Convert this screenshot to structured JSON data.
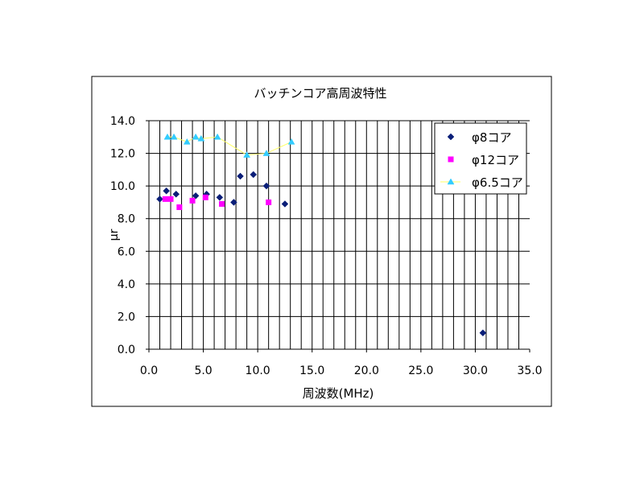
{
  "chart_data": {
    "type": "scatter",
    "title": "バッチンコア高周波特性",
    "xlabel": "周波数(MHz)",
    "ylabel": "μr",
    "xlim": [
      0,
      35
    ],
    "ylim": [
      0,
      14
    ],
    "x_major": 5,
    "x_minor": 1,
    "y_major": 2,
    "x_tick_labels": [
      "0.0",
      "5.0",
      "10.0",
      "15.0",
      "20.0",
      "25.0",
      "30.0",
      "35.0"
    ],
    "y_tick_labels": [
      "0.0",
      "2.0",
      "4.0",
      "6.0",
      "8.0",
      "10.0",
      "12.0",
      "14.0"
    ],
    "grid": true,
    "legend_position": "top-right",
    "series": [
      {
        "name": "φ8コア",
        "color": "#0A1E78",
        "marker": "diamond",
        "line": false,
        "points": [
          [
            1.0,
            9.2
          ],
          [
            1.6,
            9.7
          ],
          [
            2.5,
            9.5
          ],
          [
            4.3,
            9.4
          ],
          [
            5.3,
            9.5
          ],
          [
            6.5,
            9.3
          ],
          [
            7.8,
            9.0
          ],
          [
            8.4,
            10.6
          ],
          [
            9.6,
            10.7
          ],
          [
            10.8,
            10.0
          ],
          [
            12.5,
            8.9
          ],
          [
            30.7,
            1.0
          ]
        ]
      },
      {
        "name": "φ12コア",
        "color": "#FF00FF",
        "marker": "square",
        "line": false,
        "points": [
          [
            1.5,
            9.2
          ],
          [
            2.0,
            9.2
          ],
          [
            2.8,
            8.7
          ],
          [
            4.0,
            9.1
          ],
          [
            5.2,
            9.3
          ],
          [
            6.7,
            8.9
          ],
          [
            11.0,
            9.0
          ]
        ]
      },
      {
        "name": "φ6.5コア",
        "color": "#33CCFF",
        "line_color": "#FFFF66",
        "marker": "triangle",
        "line": true,
        "points": [
          [
            1.7,
            13.0
          ],
          [
            2.3,
            13.0
          ],
          [
            3.5,
            12.7
          ],
          [
            4.3,
            13.0
          ],
          [
            4.8,
            12.9
          ],
          [
            6.3,
            13.0
          ],
          [
            9.0,
            11.9
          ],
          [
            10.8,
            12.0
          ],
          [
            13.1,
            12.7
          ]
        ]
      }
    ]
  }
}
